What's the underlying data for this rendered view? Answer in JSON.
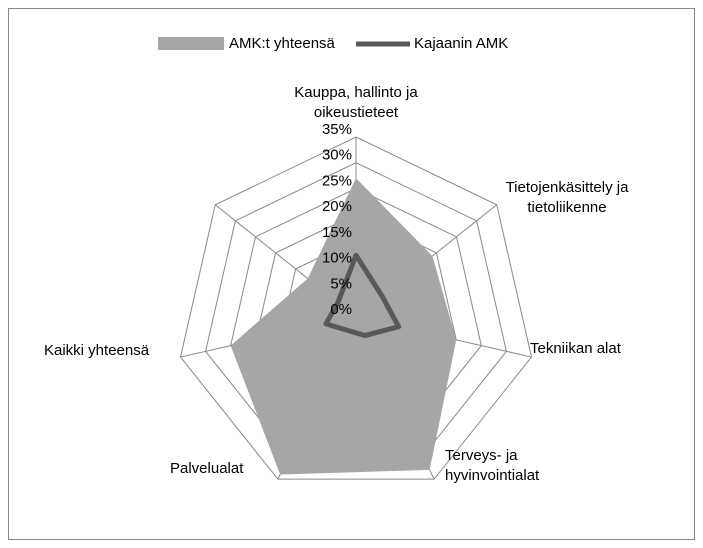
{
  "chart_data": {
    "type": "radar",
    "categories": [
      "Kauppa, hallinto ja oikeustieteet",
      "Tietojenkäsittely ja tietoliikenne",
      "Tekniikan alat",
      "Terveys- ja hyvinvointialat",
      "Palvelualat",
      "Kaikki yhteensä",
      null
    ],
    "series": [
      {
        "name": "AMK:t yhteensä",
        "color": "#a6a6a6",
        "values": [
          27,
          19,
          20,
          33,
          34,
          25,
          12
        ]
      },
      {
        "name": "Kajaanin AMK",
        "color": "#595959",
        "values": [
          12,
          6.5,
          8.5,
          4,
          3,
          6,
          4.5
        ]
      }
    ],
    "ylim": [
      0,
      35
    ],
    "yticks": [
      {
        "value": 0,
        "label": "0%"
      },
      {
        "value": 5,
        "label": "5%"
      },
      {
        "value": 10,
        "label": "10%"
      },
      {
        "value": 15,
        "label": "15%"
      },
      {
        "value": 20,
        "label": "20%"
      },
      {
        "value": 25,
        "label": "25%"
      },
      {
        "value": 30,
        "label": "30%"
      },
      {
        "value": 35,
        "label": "35%"
      }
    ],
    "grid": true,
    "legend": "top"
  }
}
